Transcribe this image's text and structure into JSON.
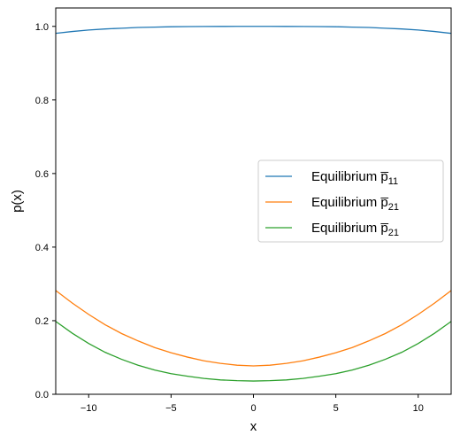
{
  "chart_data": {
    "type": "line",
    "title": "",
    "xlabel": "x",
    "ylabel": "p(x)",
    "xlim": [
      -12,
      12
    ],
    "ylim": [
      0.0,
      1.05
    ],
    "xticks": [
      -10,
      -5,
      0,
      5,
      10
    ],
    "xtick_labels": [
      "−10",
      "−5",
      "0",
      "5",
      "10"
    ],
    "yticks": [
      0.0,
      0.2,
      0.4,
      0.6,
      0.8,
      1.0
    ],
    "ytick_labels": [
      "0.0",
      "0.2",
      "0.4",
      "0.6",
      "0.8",
      "1.0"
    ],
    "grid": false,
    "legend_position": "center-right",
    "x": [
      -12,
      -11,
      -10,
      -9,
      -8,
      -7,
      -6,
      -5,
      -4,
      -3,
      -2,
      -1,
      0,
      1,
      2,
      3,
      4,
      5,
      6,
      7,
      8,
      9,
      10,
      11,
      12
    ],
    "series": [
      {
        "name": "Equilibrium p̅",
        "subscript": "11",
        "color": "#1f77b4",
        "values": [
          0.981,
          0.986,
          0.99,
          0.993,
          0.995,
          0.997,
          0.998,
          0.999,
          0.9995,
          0.9998,
          0.9999,
          1.0,
          1.0,
          1.0,
          0.9999,
          0.9998,
          0.9995,
          0.999,
          0.998,
          0.997,
          0.995,
          0.993,
          0.99,
          0.986,
          0.981
        ]
      },
      {
        "name": "Equilibrium p̅",
        "subscript": "21",
        "color": "#ff7f0e",
        "values": [
          0.282,
          0.248,
          0.217,
          0.189,
          0.165,
          0.145,
          0.127,
          0.113,
          0.101,
          0.091,
          0.084,
          0.079,
          0.077,
          0.079,
          0.084,
          0.091,
          0.101,
          0.113,
          0.127,
          0.145,
          0.165,
          0.189,
          0.217,
          0.248,
          0.282
        ]
      },
      {
        "name": "Equilibrium p̅",
        "subscript": "21",
        "color": "#2ca02c",
        "values": [
          0.198,
          0.166,
          0.138,
          0.114,
          0.095,
          0.079,
          0.066,
          0.056,
          0.049,
          0.043,
          0.039,
          0.037,
          0.036,
          0.037,
          0.039,
          0.043,
          0.049,
          0.056,
          0.066,
          0.079,
          0.095,
          0.114,
          0.138,
          0.166,
          0.198
        ]
      }
    ]
  }
}
